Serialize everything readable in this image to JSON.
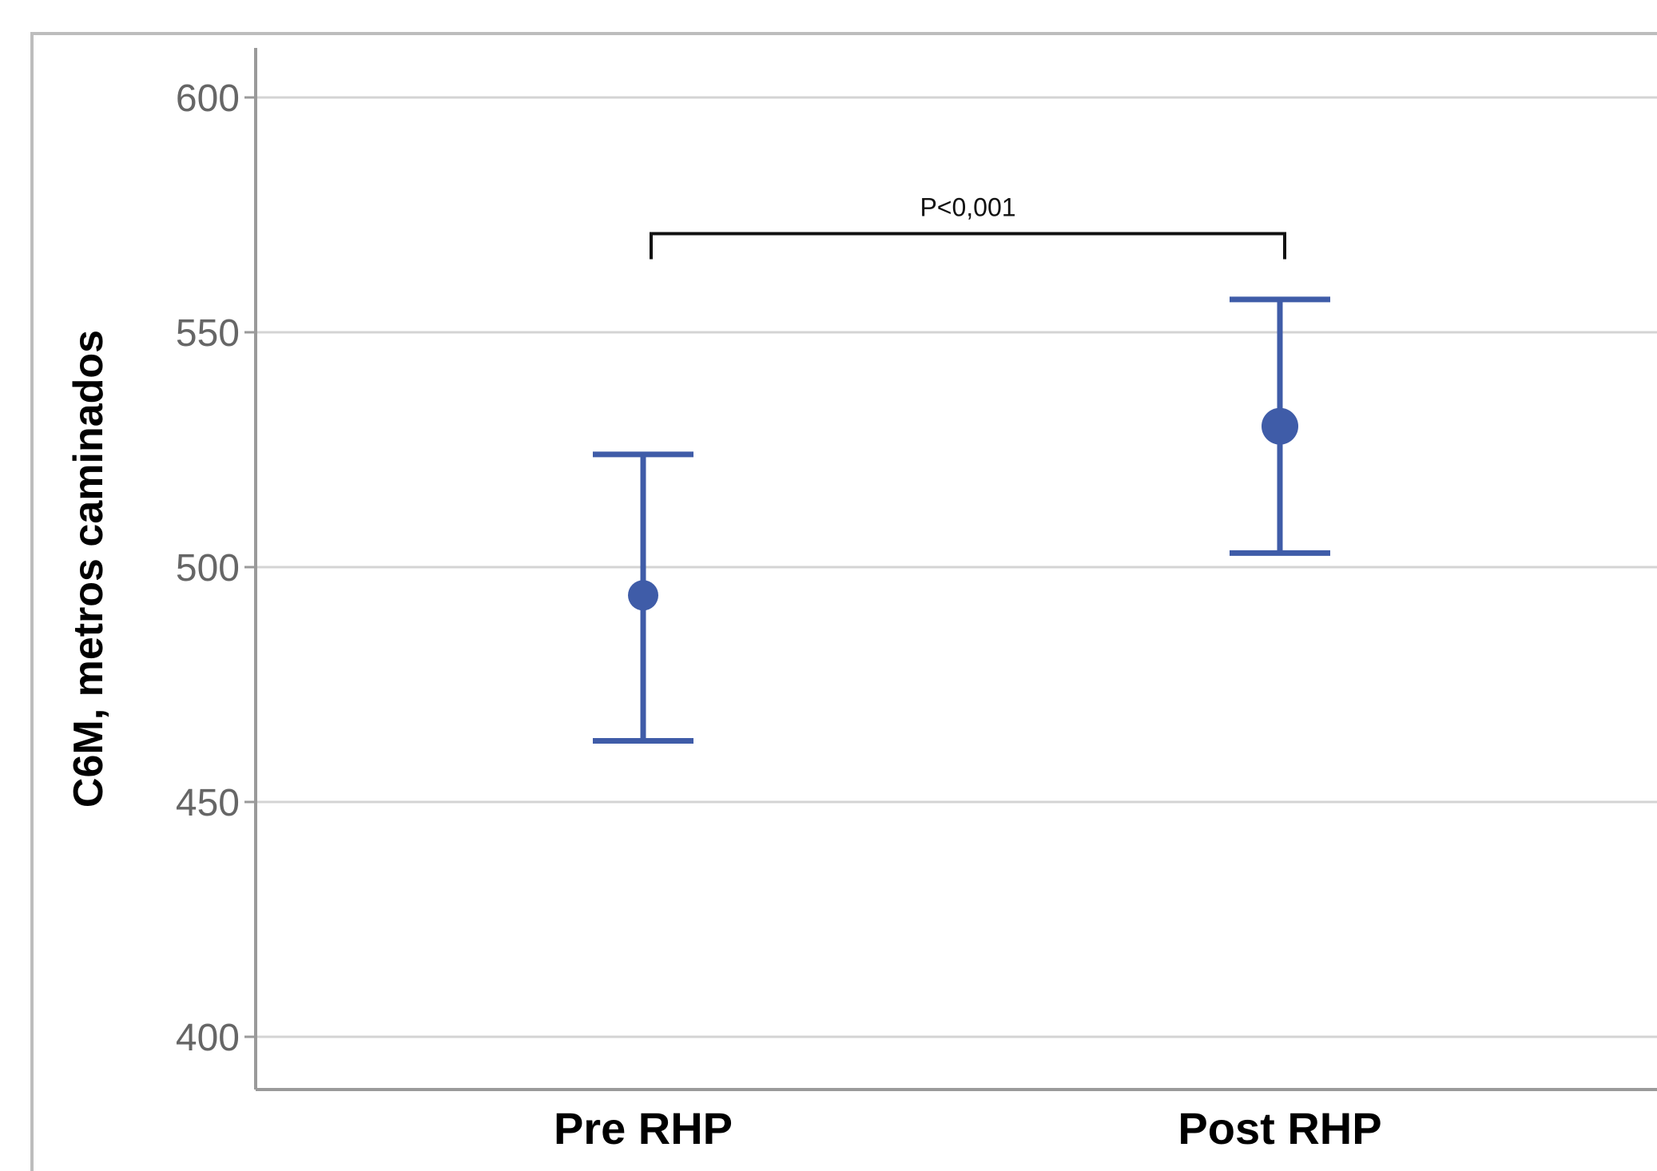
{
  "chart_data": {
    "type": "scatter",
    "title": "",
    "xlabel": "",
    "ylabel": "C6M, metros caminados",
    "categories": [
      "Pre RHP",
      "Post RHP"
    ],
    "series": [
      {
        "points": [
          {
            "category": "Pre RHP",
            "mean": 494,
            "ci_low": 463,
            "ci_high": 524
          },
          {
            "category": "Post RHP",
            "mean": 530,
            "ci_low": 503,
            "ci_high": 557
          }
        ]
      }
    ],
    "ylim": [
      389,
      610
    ],
    "yticks": [
      400,
      450,
      500,
      550,
      600
    ],
    "grid": true,
    "annotation": {
      "text": "P<0,001",
      "from": "Pre RHP",
      "to": "Post RHP",
      "bracket_value": 571
    },
    "colors": {
      "series": "#3f5ca8",
      "grid": "#d4d4d4",
      "axis": "#9a9a9a",
      "bracket": "#111111",
      "frame": "#bdbdbd"
    }
  }
}
